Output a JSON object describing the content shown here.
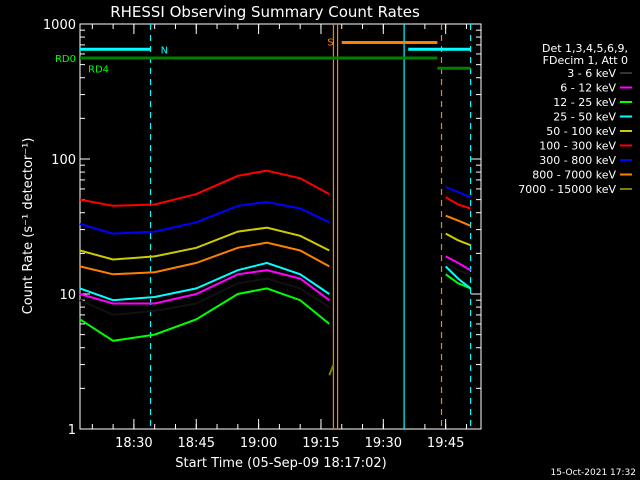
{
  "chart_data": {
    "type": "line",
    "title": "RHESSI Observing Summary Count Rates",
    "xlabel": "Start Time (05-Sep-09 18:17:02)",
    "ylabel": "Count Rate (s⁻¹ detector⁻¹)",
    "yscale": "log",
    "ylim": [
      1,
      1000
    ],
    "xlim": [
      "18:17:02",
      "19:53:30"
    ],
    "x_ticks": [
      "18:30",
      "18:45",
      "19:00",
      "19:15",
      "19:30",
      "19:45"
    ],
    "y_ticks": [
      "1",
      "10",
      "100",
      "1000"
    ],
    "timestamp": "15-Oct-2021 17:32",
    "legend": {
      "placement": "right",
      "header": [
        "Det 1,3,4,5,6,9,",
        "FDecim 1, Att 0"
      ],
      "entries": [
        {
          "label": "3 - 6 keV",
          "color": "#000000"
        },
        {
          "label": "6 - 12 keV",
          "color": "#ff00ff"
        },
        {
          "label": "12 - 25 keV",
          "color": "#00ff00"
        },
        {
          "label": "25 - 50 keV",
          "color": "#00ffff"
        },
        {
          "label": "50 - 100 keV",
          "color": "#cccc00"
        },
        {
          "label": "100 - 300 keV",
          "color": "#ff0000"
        },
        {
          "label": "300 - 800 keV",
          "color": "#0000ff"
        },
        {
          "label": "800 - 7000 keV",
          "color": "#ff8000"
        },
        {
          "label": "7000 - 15000 keV",
          "color": "#808000"
        }
      ]
    },
    "flags": [
      {
        "label": "N",
        "color": "#00ffff",
        "segments": [
          [
            "18:17",
            "18:34"
          ],
          [
            "19:36",
            "19:51"
          ]
        ],
        "level": 650
      },
      {
        "label": "S",
        "color": "#ff8000",
        "segments": [
          [
            "19:20",
            "19:43"
          ]
        ],
        "level": 730
      },
      {
        "label": "RD0",
        "color": "#008000",
        "segments": [
          [
            "18:17",
            "19:43"
          ]
        ],
        "level": 560
      },
      {
        "label": "RD4",
        "color": "#008000",
        "segments": [
          [
            "19:43",
            "19:51"
          ]
        ],
        "level": 470
      }
    ],
    "vlines": [
      {
        "time": "18:34",
        "color": "#00ffff",
        "style": "dashed"
      },
      {
        "time": "19:18",
        "color": "#ff8000",
        "style": "solid"
      },
      {
        "time": "19:19",
        "color": "#ff8000",
        "style": "solid"
      },
      {
        "time": "19:35",
        "color": "#00ffff",
        "style": "solid"
      },
      {
        "time": "19:44",
        "color": "#ff8000",
        "style": "dashed"
      },
      {
        "time": "19:51",
        "color": "#00ffff",
        "style": "dashed"
      }
    ],
    "series": [
      {
        "name": "3 - 6 keV",
        "color": "#000000",
        "x": [
          "18:17",
          "18:25",
          "18:35",
          "18:45",
          "18:55",
          "19:02",
          "19:10",
          "19:17",
          "19:45",
          "19:48",
          "19:51"
        ],
        "y": [
          9,
          7,
          7.5,
          8.5,
          12,
          13,
          11,
          8,
          17,
          15,
          14
        ]
      },
      {
        "name": "6 - 12 keV",
        "color": "#ff00ff",
        "x": [
          "18:17",
          "18:25",
          "18:35",
          "18:45",
          "18:55",
          "19:02",
          "19:10",
          "19:17",
          "19:45",
          "19:48",
          "19:51"
        ],
        "y": [
          10,
          8.5,
          8.5,
          10,
          14,
          15,
          13,
          9,
          19,
          17,
          15
        ]
      },
      {
        "name": "12 - 25 keV",
        "color": "#00ff00",
        "x": [
          "18:17",
          "18:25",
          "18:35",
          "18:45",
          "18:55",
          "19:02",
          "19:10",
          "19:17",
          "19:45",
          "19:48",
          "19:51"
        ],
        "y": [
          6.5,
          4.5,
          5,
          6.5,
          10,
          11,
          9,
          6,
          14,
          12,
          11
        ]
      },
      {
        "name": "25 - 50 keV",
        "color": "#00ffff",
        "x": [
          "18:17",
          "18:25",
          "18:35",
          "18:45",
          "18:55",
          "19:02",
          "19:10",
          "19:17",
          "19:45",
          "19:48",
          "19:51"
        ],
        "y": [
          11,
          9,
          9.5,
          11,
          15,
          17,
          14,
          10,
          16,
          13,
          11
        ]
      },
      {
        "name": "50 - 100 keV",
        "color": "#cccc00",
        "x": [
          "18:17",
          "18:25",
          "18:35",
          "18:45",
          "18:55",
          "19:02",
          "19:10",
          "19:17",
          "19:45",
          "19:48",
          "19:51"
        ],
        "y": [
          21,
          18,
          19,
          22,
          29,
          31,
          27,
          21,
          28,
          25,
          23
        ]
      },
      {
        "name": "100 - 300 keV",
        "color": "#ff0000",
        "x": [
          "18:17",
          "18:25",
          "18:35",
          "18:45",
          "18:55",
          "19:02",
          "19:10",
          "19:17",
          "19:45",
          "19:48",
          "19:51"
        ],
        "y": [
          50,
          45,
          46,
          55,
          75,
          82,
          72,
          55,
          52,
          46,
          43
        ]
      },
      {
        "name": "300 - 800 keV",
        "color": "#0000ff",
        "x": [
          "18:17",
          "18:25",
          "18:35",
          "18:45",
          "18:55",
          "19:02",
          "19:10",
          "19:17",
          "19:45",
          "19:48",
          "19:51"
        ],
        "y": [
          33,
          28,
          29,
          34,
          45,
          48,
          43,
          34,
          62,
          57,
          52
        ]
      },
      {
        "name": "800 - 7000 keV",
        "color": "#ff8000",
        "x": [
          "18:17",
          "18:25",
          "18:35",
          "18:45",
          "18:55",
          "19:02",
          "19:10",
          "19:17",
          "19:45",
          "19:48",
          "19:51"
        ],
        "y": [
          16,
          14,
          14.5,
          17,
          22,
          24,
          21,
          16,
          38,
          35,
          32
        ]
      },
      {
        "name": "7000 - 15000 keV",
        "color": "#808000",
        "x": [
          "19:17",
          "19:18"
        ],
        "y": [
          2.5,
          3
        ]
      }
    ]
  }
}
